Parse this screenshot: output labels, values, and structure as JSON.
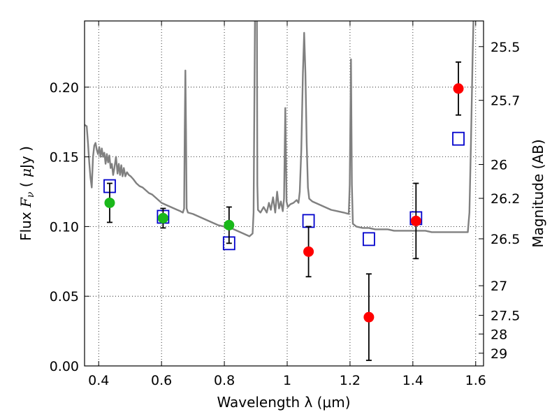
{
  "chart_data": {
    "type": "scatter",
    "xlabel": "Wavelength  λ (μm)",
    "ylabel_parts": [
      "Flux  ",
      "F",
      "ν",
      "  ( ",
      "μ",
      "Jy )"
    ],
    "y2label": "Magnitude (AB)",
    "xlim": [
      0.355,
      1.625
    ],
    "ylim": [
      0.0,
      0.2475
    ],
    "grid": true,
    "x_ticks": [
      {
        "value": 0.4,
        "label": "0.4"
      },
      {
        "value": 0.6,
        "label": "0.6"
      },
      {
        "value": 0.8,
        "label": "0.8"
      },
      {
        "value": 1.0,
        "label": "1"
      },
      {
        "value": 1.2,
        "label": "1.2"
      },
      {
        "value": 1.4,
        "label": "1.4"
      },
      {
        "value": 1.6,
        "label": "1.6"
      }
    ],
    "y_ticks": [
      {
        "value": 0.0,
        "label": "0.00"
      },
      {
        "value": 0.05,
        "label": "0.05"
      },
      {
        "value": 0.1,
        "label": "0.10"
      },
      {
        "value": 0.15,
        "label": "0.15"
      },
      {
        "value": 0.2,
        "label": "0.20"
      }
    ],
    "y2_ticks": [
      {
        "value": 25.5,
        "label": "25.5"
      },
      {
        "value": 25.7,
        "label": "25.7"
      },
      {
        "value": 26.0,
        "label": "26"
      },
      {
        "value": 26.2,
        "label": "26.2"
      },
      {
        "value": 26.5,
        "label": "26.5"
      },
      {
        "value": 27.0,
        "label": "27"
      },
      {
        "value": 27.5,
        "label": "27.5"
      },
      {
        "value": 28.0,
        "label": "28"
      },
      {
        "value": 29.0,
        "label": "29"
      }
    ],
    "series": [
      {
        "kind": "template_spectrum",
        "color": "#808080",
        "points": [
          [
            0.355,
            0.173
          ],
          [
            0.362,
            0.172
          ],
          [
            0.366,
            0.16
          ],
          [
            0.37,
            0.146
          ],
          [
            0.374,
            0.135
          ],
          [
            0.378,
            0.128
          ],
          [
            0.382,
            0.15
          ],
          [
            0.386,
            0.158
          ],
          [
            0.39,
            0.16
          ],
          [
            0.394,
            0.155
          ],
          [
            0.398,
            0.152
          ],
          [
            0.402,
            0.157
          ],
          [
            0.406,
            0.15
          ],
          [
            0.41,
            0.156
          ],
          [
            0.414,
            0.15
          ],
          [
            0.418,
            0.153
          ],
          [
            0.422,
            0.145
          ],
          [
            0.426,
            0.152
          ],
          [
            0.43,
            0.146
          ],
          [
            0.434,
            0.151
          ],
          [
            0.438,
            0.142
          ],
          [
            0.442,
            0.145
          ],
          [
            0.446,
            0.137
          ],
          [
            0.45,
            0.142
          ],
          [
            0.455,
            0.15
          ],
          [
            0.46,
            0.138
          ],
          [
            0.464,
            0.145
          ],
          [
            0.468,
            0.137
          ],
          [
            0.472,
            0.144
          ],
          [
            0.476,
            0.136
          ],
          [
            0.48,
            0.142
          ],
          [
            0.485,
            0.136
          ],
          [
            0.49,
            0.139
          ],
          [
            0.496,
            0.137
          ],
          [
            0.502,
            0.136
          ],
          [
            0.51,
            0.134
          ],
          [
            0.52,
            0.131
          ],
          [
            0.53,
            0.129
          ],
          [
            0.54,
            0.128
          ],
          [
            0.55,
            0.126
          ],
          [
            0.56,
            0.124
          ],
          [
            0.57,
            0.123
          ],
          [
            0.58,
            0.121
          ],
          [
            0.59,
            0.119
          ],
          [
            0.6,
            0.117
          ],
          [
            0.61,
            0.116
          ],
          [
            0.62,
            0.115
          ],
          [
            0.63,
            0.114
          ],
          [
            0.64,
            0.113
          ],
          [
            0.65,
            0.112
          ],
          [
            0.66,
            0.111
          ],
          [
            0.668,
            0.11
          ],
          [
            0.672,
            0.113
          ],
          [
            0.674,
            0.17
          ],
          [
            0.676,
            0.212
          ],
          [
            0.678,
            0.17
          ],
          [
            0.68,
            0.113
          ],
          [
            0.684,
            0.11
          ],
          [
            0.7,
            0.109
          ],
          [
            0.72,
            0.107
          ],
          [
            0.74,
            0.105
          ],
          [
            0.76,
            0.103
          ],
          [
            0.78,
            0.101
          ],
          [
            0.8,
            0.1
          ],
          [
            0.82,
            0.099
          ],
          [
            0.84,
            0.097
          ],
          [
            0.86,
            0.095
          ],
          [
            0.88,
            0.093
          ],
          [
            0.89,
            0.095
          ],
          [
            0.893,
            0.11
          ],
          [
            0.896,
            0.2
          ],
          [
            0.899,
            0.3
          ],
          [
            0.903,
            0.3
          ],
          [
            0.905,
            0.13
          ],
          [
            0.907,
            0.112
          ],
          [
            0.915,
            0.11
          ],
          [
            0.925,
            0.114
          ],
          [
            0.935,
            0.11
          ],
          [
            0.942,
            0.117
          ],
          [
            0.948,
            0.112
          ],
          [
            0.955,
            0.121
          ],
          [
            0.962,
            0.11
          ],
          [
            0.968,
            0.125
          ],
          [
            0.974,
            0.113
          ],
          [
            0.98,
            0.118
          ],
          [
            0.986,
            0.111
          ],
          [
            0.99,
            0.12
          ],
          [
            0.994,
            0.185
          ],
          [
            0.998,
            0.118
          ],
          [
            1.002,
            0.114
          ],
          [
            1.01,
            0.116
          ],
          [
            1.02,
            0.117
          ],
          [
            1.03,
            0.119
          ],
          [
            1.036,
            0.117
          ],
          [
            1.04,
            0.125
          ],
          [
            1.045,
            0.155
          ],
          [
            1.05,
            0.21
          ],
          [
            1.054,
            0.239
          ],
          [
            1.058,
            0.21
          ],
          [
            1.062,
            0.16
          ],
          [
            1.066,
            0.128
          ],
          [
            1.07,
            0.12
          ],
          [
            1.08,
            0.118
          ],
          [
            1.1,
            0.116
          ],
          [
            1.12,
            0.114
          ],
          [
            1.14,
            0.112
          ],
          [
            1.16,
            0.111
          ],
          [
            1.18,
            0.11
          ],
          [
            1.196,
            0.109
          ],
          [
            1.199,
            0.13
          ],
          [
            1.203,
            0.22
          ],
          [
            1.206,
            0.13
          ],
          [
            1.209,
            0.102
          ],
          [
            1.22,
            0.1
          ],
          [
            1.24,
            0.099
          ],
          [
            1.26,
            0.099
          ],
          [
            1.28,
            0.098
          ],
          [
            1.3,
            0.098
          ],
          [
            1.32,
            0.098
          ],
          [
            1.34,
            0.097
          ],
          [
            1.36,
            0.097
          ],
          [
            1.38,
            0.097
          ],
          [
            1.4,
            0.097
          ],
          [
            1.42,
            0.097
          ],
          [
            1.44,
            0.097
          ],
          [
            1.46,
            0.096
          ],
          [
            1.48,
            0.096
          ],
          [
            1.5,
            0.096
          ],
          [
            1.52,
            0.096
          ],
          [
            1.54,
            0.096
          ],
          [
            1.56,
            0.096
          ],
          [
            1.575,
            0.096
          ],
          [
            1.58,
            0.11
          ],
          [
            1.585,
            0.16
          ],
          [
            1.59,
            0.22
          ],
          [
            1.594,
            0.26
          ],
          [
            1.6,
            0.3
          ],
          [
            1.606,
            0.3
          ],
          [
            1.61,
            0.26
          ],
          [
            1.615,
            0.3
          ],
          [
            1.625,
            0.3
          ]
        ]
      },
      {
        "kind": "observed_green",
        "color": "#1ab81a",
        "points": [
          {
            "x": 0.435,
            "y": 0.117,
            "err": 0.014
          },
          {
            "x": 0.605,
            "y": 0.106,
            "err": 0.007
          },
          {
            "x": 0.815,
            "y": 0.101,
            "err": 0.013
          }
        ]
      },
      {
        "kind": "observed_red",
        "color": "#ff0000",
        "points": [
          {
            "x": 1.068,
            "y": 0.082,
            "err": 0.018
          },
          {
            "x": 1.26,
            "y": 0.035,
            "err": 0.031
          },
          {
            "x": 1.41,
            "y": 0.104,
            "err": 0.027
          },
          {
            "x": 1.545,
            "y": 0.199,
            "err": 0.019
          }
        ]
      },
      {
        "kind": "model_squares",
        "color": "#0000cc",
        "points": [
          {
            "x": 0.435,
            "y": 0.129
          },
          {
            "x": 0.605,
            "y": 0.107
          },
          {
            "x": 0.815,
            "y": 0.088
          },
          {
            "x": 1.068,
            "y": 0.104
          },
          {
            "x": 1.26,
            "y": 0.091
          },
          {
            "x": 1.41,
            "y": 0.106
          },
          {
            "x": 1.545,
            "y": 0.163
          }
        ]
      }
    ]
  }
}
